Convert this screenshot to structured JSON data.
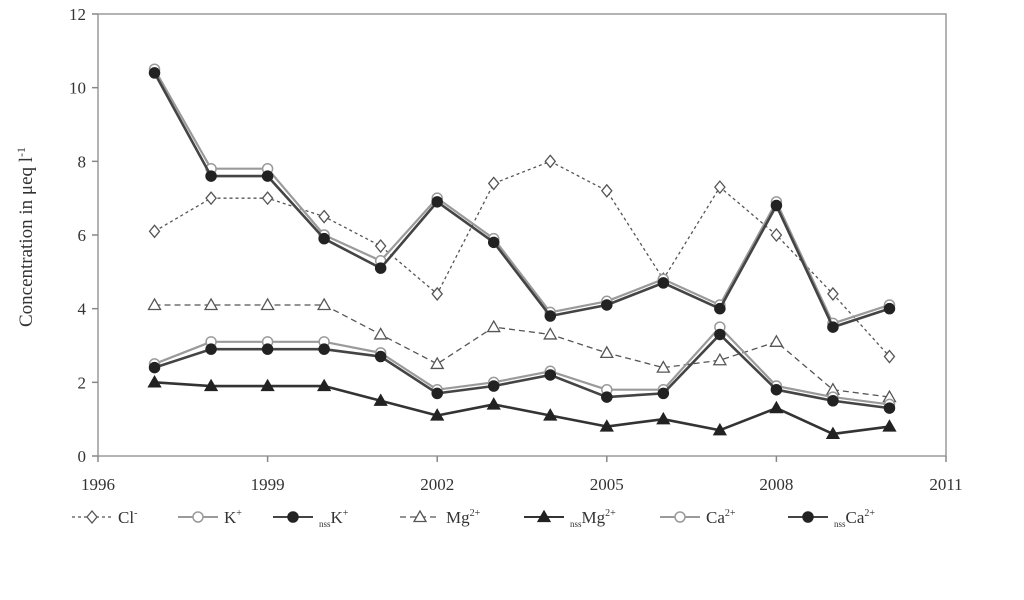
{
  "chart_data": {
    "type": "line",
    "title": "",
    "xlabel": "",
    "ylabel": "Concentration in μeq l",
    "ylabel_sup": "-1",
    "xlim": [
      1996,
      2011
    ],
    "ylim": [
      0,
      12
    ],
    "x_ticks": [
      1996,
      1999,
      2002,
      2005,
      2008,
      2011
    ],
    "y_ticks": [
      0,
      2,
      4,
      6,
      8,
      10,
      12
    ],
    "grid": false,
    "legend_position": "bottom",
    "x": [
      1997,
      1998,
      1999,
      2000,
      2001,
      2002,
      2003,
      2004,
      2005,
      2006,
      2007,
      2008,
      2009,
      2010
    ],
    "series": [
      {
        "name": "Cl",
        "sup": "-",
        "sub": "",
        "marker": "diamond-open",
        "dash": "3,3",
        "color": "#555555",
        "values": [
          6.1,
          7.0,
          7.0,
          6.5,
          5.7,
          4.4,
          7.4,
          8.0,
          7.2,
          4.8,
          7.3,
          6.0,
          4.4,
          2.7
        ]
      },
      {
        "name": "K",
        "sup": "+",
        "sub": "",
        "marker": "circle-open",
        "dash": "",
        "color": "#9a9a9a",
        "values": [
          10.5,
          7.8,
          7.8,
          6.0,
          5.3,
          7.0,
          5.9,
          3.9,
          4.2,
          4.8,
          4.1,
          6.9,
          3.6,
          4.1
        ]
      },
      {
        "name": "K",
        "sup": "+",
        "sub": "nss",
        "marker": "circle-filled",
        "dash": "",
        "color": "#444444",
        "values": [
          10.4,
          7.6,
          7.6,
          5.9,
          5.1,
          6.9,
          5.8,
          3.8,
          4.1,
          4.7,
          4.0,
          6.8,
          3.5,
          4.0
        ]
      },
      {
        "name": "Mg",
        "sup": "2+",
        "sub": "",
        "marker": "triangle-open",
        "dash": "6,4",
        "color": "#555555",
        "values": [
          4.1,
          4.1,
          4.1,
          4.1,
          3.3,
          2.5,
          3.5,
          3.3,
          2.8,
          2.4,
          2.6,
          3.1,
          1.8,
          1.6
        ]
      },
      {
        "name": "Mg",
        "sup": "2+",
        "sub": "nss",
        "marker": "triangle-filled",
        "dash": "",
        "color": "#333333",
        "values": [
          2.0,
          1.9,
          1.9,
          1.9,
          1.5,
          1.1,
          1.4,
          1.1,
          0.8,
          1.0,
          0.7,
          1.3,
          0.6,
          0.8
        ]
      },
      {
        "name": "Ca",
        "sup": "2+",
        "sub": "",
        "marker": "circle-open",
        "dash": "",
        "color": "#9a9a9a",
        "values": [
          2.5,
          3.1,
          3.1,
          3.1,
          2.8,
          1.8,
          2.0,
          2.3,
          1.8,
          1.8,
          3.5,
          1.9,
          1.6,
          1.4
        ]
      },
      {
        "name": "Ca",
        "sup": "2+",
        "sub": "nss",
        "marker": "circle-filled",
        "dash": "",
        "color": "#444444",
        "values": [
          2.4,
          2.9,
          2.9,
          2.9,
          2.7,
          1.7,
          1.9,
          2.2,
          1.6,
          1.7,
          3.3,
          1.8,
          1.5,
          1.3
        ]
      }
    ]
  }
}
